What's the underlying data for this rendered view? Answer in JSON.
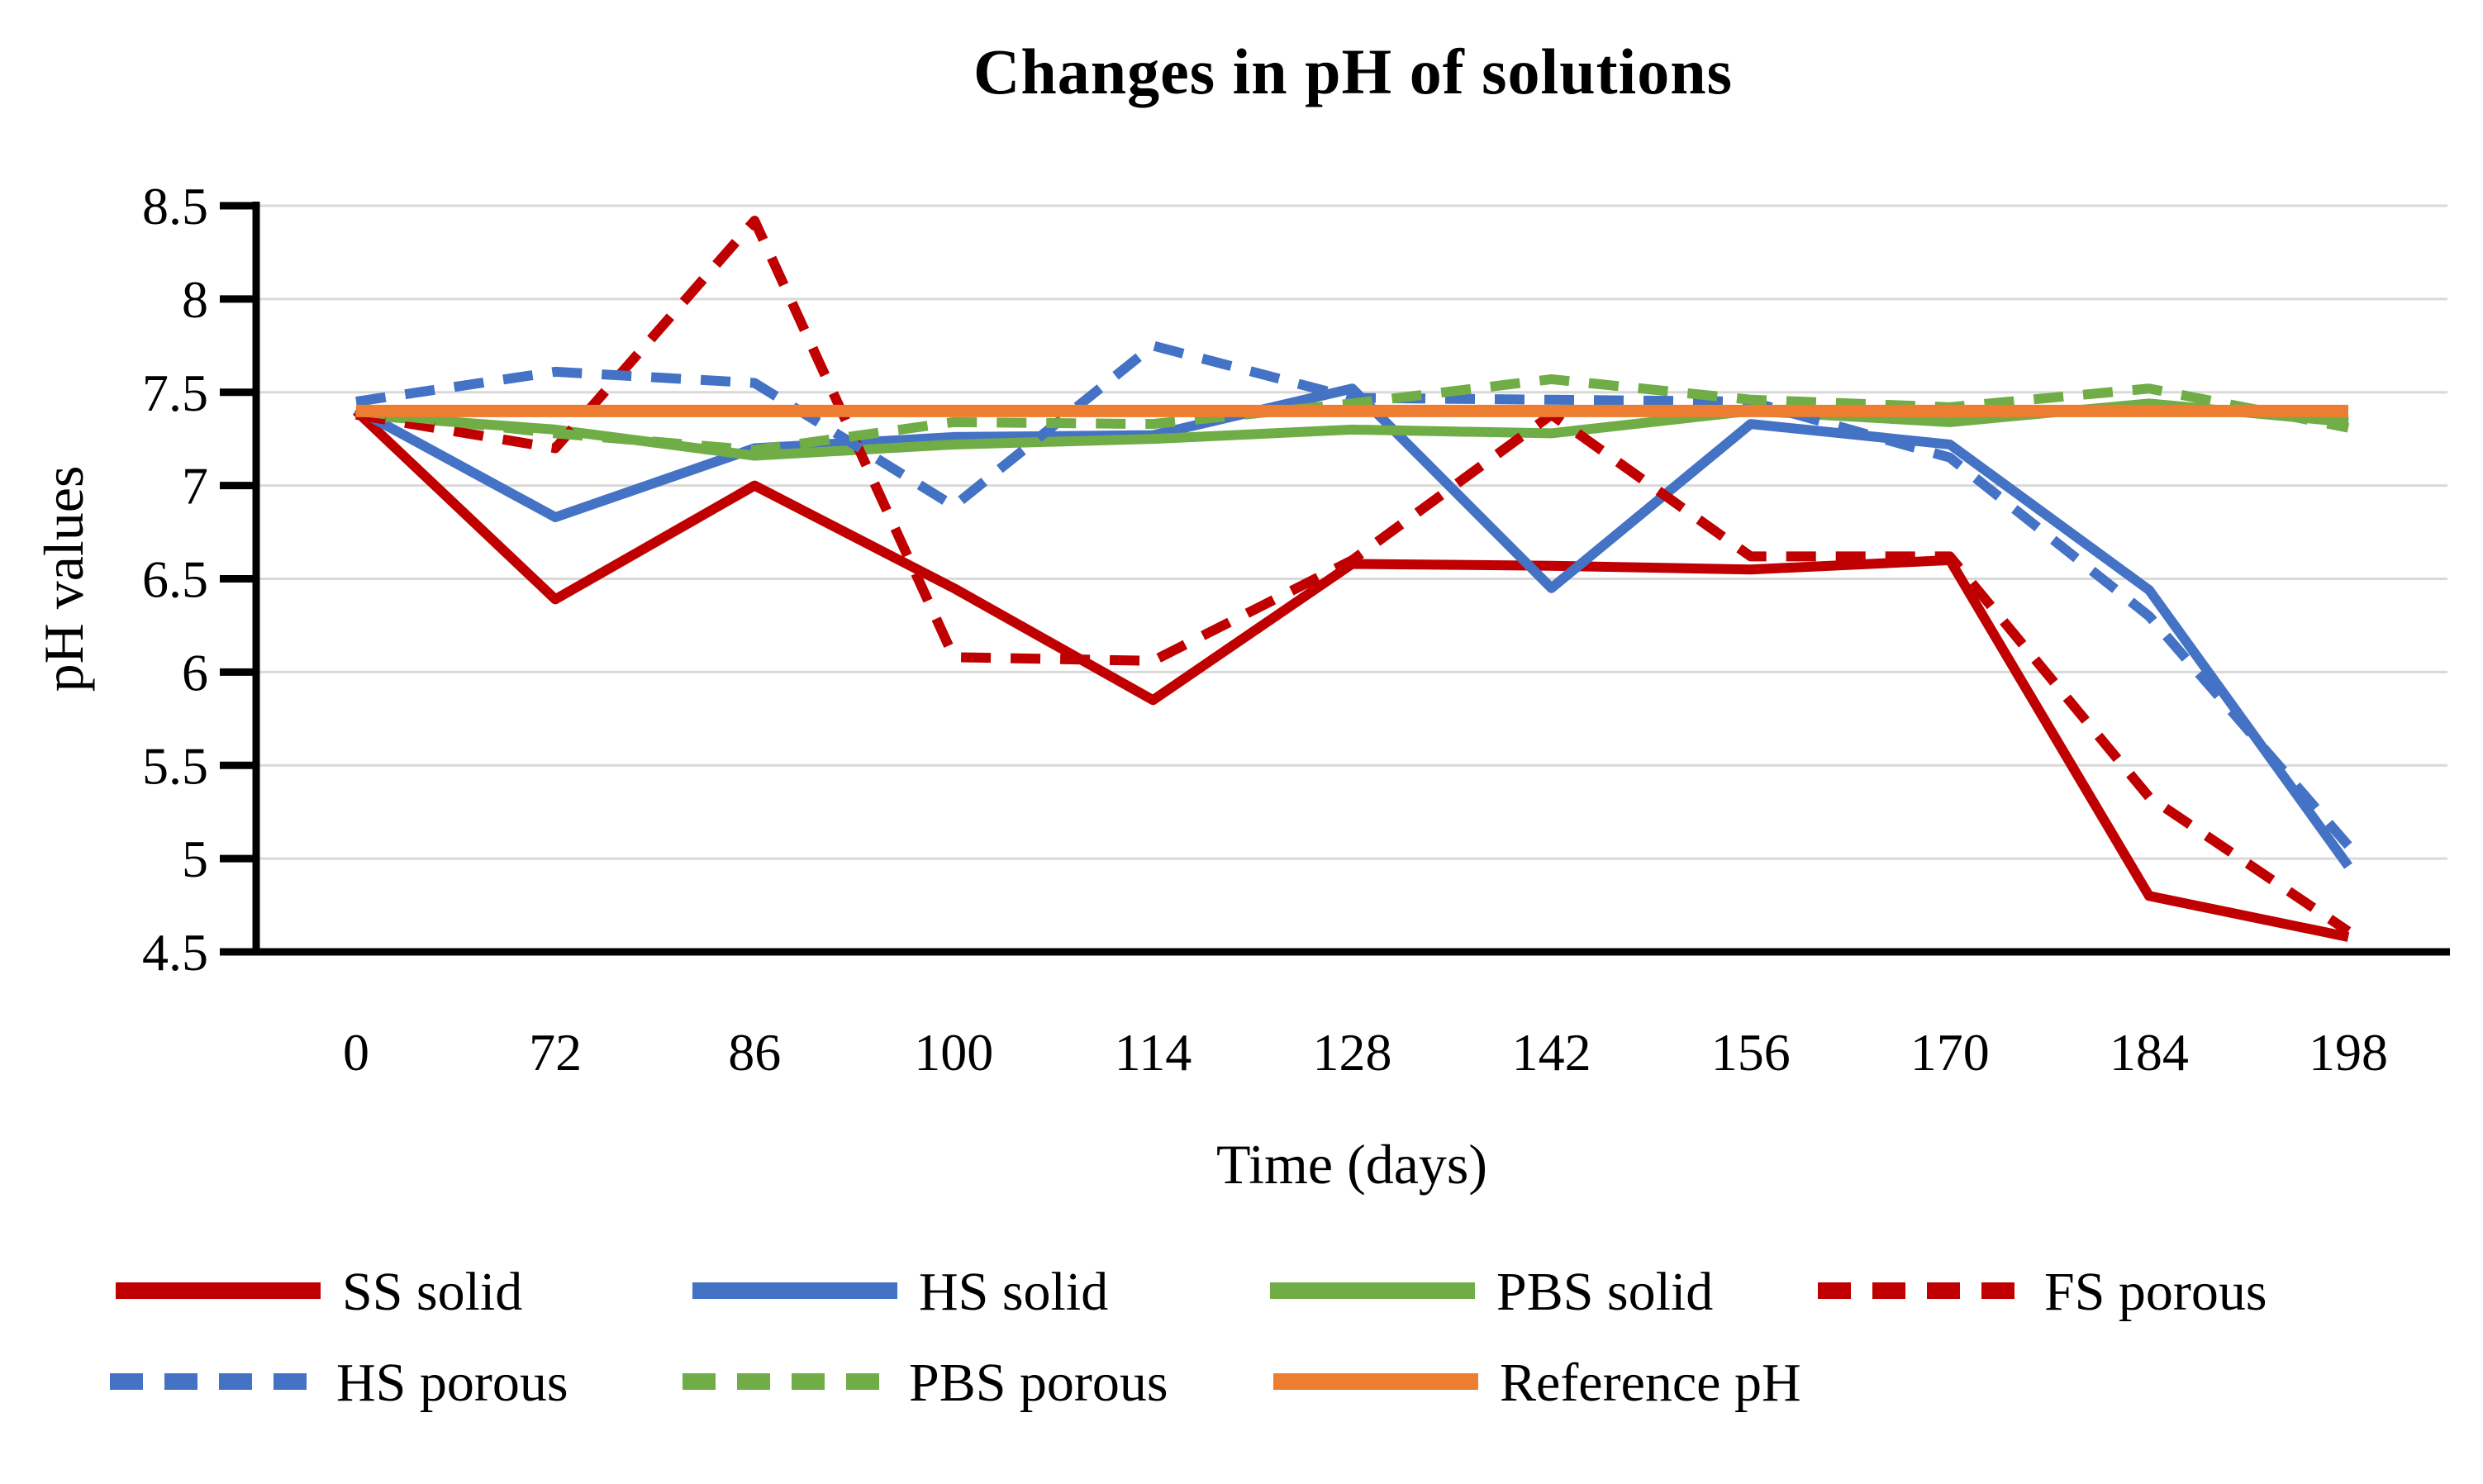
{
  "title": "Changes in pH of solutions",
  "axes": {
    "x_label": "Time (days)",
    "y_label": "pH values"
  },
  "colors": {
    "dark_red": "#C00000",
    "blue": "#4472C4",
    "green": "#70AD47",
    "orange": "#ED7D31",
    "gridline": "#D9D9D9",
    "axis": "#000000",
    "text": "#000000"
  },
  "chart_data": {
    "type": "line",
    "title": "Changes in pH of solutions",
    "xlabel": "Time (days)",
    "ylabel": "pH values",
    "ylim": [
      4.5,
      8.5
    ],
    "ytick_step": 0.5,
    "grid": "horizontal-only",
    "legend_position": "bottom",
    "categories": [
      0,
      72,
      86,
      100,
      114,
      128,
      142,
      156,
      170,
      184,
      198
    ],
    "series": [
      {
        "name": "SS solid",
        "color": "#C00000",
        "style": "solid",
        "values": [
          7.4,
          6.39,
          7.0,
          6.45,
          5.85,
          6.58,
          6.57,
          6.55,
          6.6,
          4.8,
          4.58
        ]
      },
      {
        "name": "HS solid",
        "color": "#4472C4",
        "style": "solid",
        "values": [
          7.41,
          6.83,
          7.2,
          7.26,
          7.27,
          7.52,
          6.45,
          7.33,
          7.22,
          6.44,
          4.96
        ]
      },
      {
        "name": "PBS solid",
        "color": "#70AD47",
        "style": "solid",
        "values": [
          7.38,
          7.3,
          7.16,
          7.22,
          7.25,
          7.3,
          7.28,
          7.4,
          7.34,
          7.44,
          7.34
        ]
      },
      {
        "name": "FS porous",
        "color": "#C00000",
        "style": "dashed",
        "values": [
          7.38,
          7.2,
          8.42,
          6.08,
          6.06,
          6.6,
          7.38,
          6.62,
          6.62,
          5.33,
          4.61
        ]
      },
      {
        "name": "HS porous",
        "color": "#4472C4",
        "style": "dashed",
        "values": [
          7.45,
          7.61,
          7.55,
          6.89,
          7.75,
          7.47,
          7.46,
          7.45,
          7.15,
          6.3,
          5.07
        ]
      },
      {
        "name": "PBS porous",
        "color": "#70AD47",
        "style": "dashed",
        "values": [
          7.4,
          7.28,
          7.19,
          7.34,
          7.33,
          7.44,
          7.57,
          7.46,
          7.42,
          7.52,
          7.31
        ]
      },
      {
        "name": "Reference pH",
        "color": "#ED7D31",
        "style": "solid",
        "values": [
          7.4,
          7.4,
          7.4,
          7.4,
          7.4,
          7.4,
          7.4,
          7.4,
          7.4,
          7.4,
          7.4
        ]
      }
    ]
  },
  "legend": {
    "rows": [
      [
        "SS solid",
        "HS solid",
        "PBS solid",
        "FS porous"
      ],
      [
        "HS porous",
        "PBS porous",
        "Reference pH"
      ]
    ]
  }
}
